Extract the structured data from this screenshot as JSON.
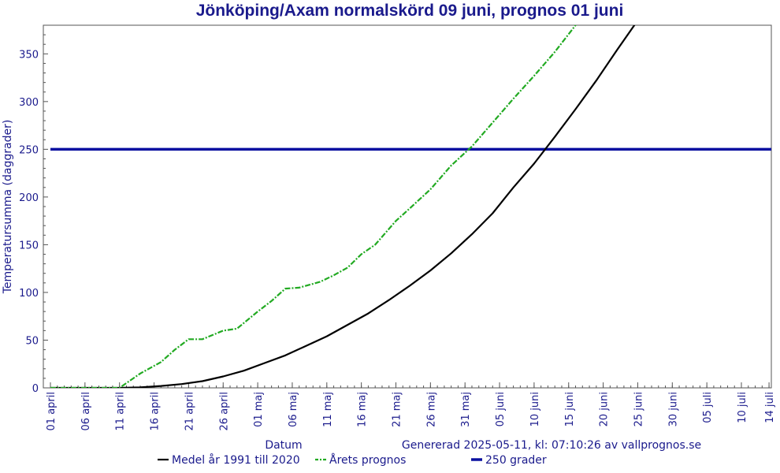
{
  "chart_data": {
    "type": "line",
    "title": "Jönköping/Axam normalskörd 09 juni, prognos 01 juni",
    "xlabel": "Datum",
    "ylabel": "Temperatursumma (daggrader)",
    "ylim": [
      0,
      380
    ],
    "xlim": [
      "2025-04-01",
      "2025-07-15"
    ],
    "y_ticks": [
      0,
      50,
      100,
      150,
      200,
      250,
      300,
      350
    ],
    "x_ticks": [
      "01 april",
      "06 april",
      "11 april",
      "16 april",
      "21 april",
      "26 april",
      "01 maj",
      "06 maj",
      "11 maj",
      "16 maj",
      "21 maj",
      "26 maj",
      "31 maj",
      "05 juni",
      "10 juni",
      "15 juni",
      "20 juni",
      "25 juni",
      "30 juni",
      "05 juli",
      "10 juli",
      "14 juli"
    ],
    "x_tick_dates": [
      "2025-04-01",
      "2025-04-06",
      "2025-04-11",
      "2025-04-16",
      "2025-04-21",
      "2025-04-26",
      "2025-05-01",
      "2025-05-06",
      "2025-05-11",
      "2025-05-16",
      "2025-05-21",
      "2025-05-26",
      "2025-05-31",
      "2025-06-05",
      "2025-06-10",
      "2025-06-15",
      "2025-06-20",
      "2025-06-25",
      "2025-06-30",
      "2025-07-05",
      "2025-07-10",
      "2025-07-14"
    ],
    "grid": false,
    "generated_text": "Genererad 2025-05-11, kl: 07:10:26 av vallprognos.se",
    "series": [
      {
        "name": "Medel år 1991 till 2020",
        "style": "solid",
        "color": "#000000",
        "points": [
          [
            "2025-04-01",
            0
          ],
          [
            "2025-04-11",
            0
          ],
          [
            "2025-04-14",
            0.5
          ],
          [
            "2025-04-17",
            2
          ],
          [
            "2025-04-20",
            4
          ],
          [
            "2025-04-23",
            7
          ],
          [
            "2025-04-26",
            12
          ],
          [
            "2025-04-29",
            18
          ],
          [
            "2025-05-02",
            26
          ],
          [
            "2025-05-05",
            34
          ],
          [
            "2025-05-08",
            44
          ],
          [
            "2025-05-11",
            54
          ],
          [
            "2025-05-14",
            66
          ],
          [
            "2025-05-17",
            78
          ],
          [
            "2025-05-20",
            92
          ],
          [
            "2025-05-23",
            107
          ],
          [
            "2025-05-26",
            123
          ],
          [
            "2025-05-29",
            141
          ],
          [
            "2025-06-01",
            161
          ],
          [
            "2025-06-04",
            183
          ],
          [
            "2025-06-07",
            210
          ],
          [
            "2025-06-10",
            235
          ],
          [
            "2025-06-13",
            263
          ],
          [
            "2025-06-16",
            292
          ],
          [
            "2025-06-19",
            322
          ],
          [
            "2025-06-22",
            354
          ],
          [
            "2025-06-25",
            385
          ]
        ]
      },
      {
        "name": "Årets prognos",
        "style": "dashdot",
        "color": "#22aa22",
        "points": [
          [
            "2025-04-01",
            0
          ],
          [
            "2025-04-11",
            0
          ],
          [
            "2025-04-14",
            15
          ],
          [
            "2025-04-17",
            27
          ],
          [
            "2025-04-19",
            40
          ],
          [
            "2025-04-21",
            51
          ],
          [
            "2025-04-23",
            51
          ],
          [
            "2025-04-26",
            60
          ],
          [
            "2025-04-28",
            62
          ],
          [
            "2025-05-01",
            80
          ],
          [
            "2025-05-03",
            91
          ],
          [
            "2025-05-05",
            104
          ],
          [
            "2025-05-07",
            105
          ],
          [
            "2025-05-10",
            111
          ],
          [
            "2025-05-12",
            118
          ],
          [
            "2025-05-14",
            126
          ],
          [
            "2025-05-16",
            140
          ],
          [
            "2025-05-18",
            150
          ],
          [
            "2025-05-21",
            175
          ],
          [
            "2025-05-23",
            188
          ],
          [
            "2025-05-26",
            208
          ],
          [
            "2025-05-29",
            233
          ],
          [
            "2025-06-01",
            253
          ],
          [
            "2025-06-04",
            278
          ],
          [
            "2025-06-07",
            303
          ],
          [
            "2025-06-10",
            327
          ],
          [
            "2025-06-13",
            352
          ],
          [
            "2025-06-16",
            380
          ],
          [
            "2025-06-19",
            405
          ]
        ]
      },
      {
        "name": "250 grader",
        "style": "solid",
        "color": "#0a10a0",
        "points": [
          [
            "2025-04-01",
            250
          ],
          [
            "2025-07-15",
            250
          ]
        ]
      }
    ]
  }
}
